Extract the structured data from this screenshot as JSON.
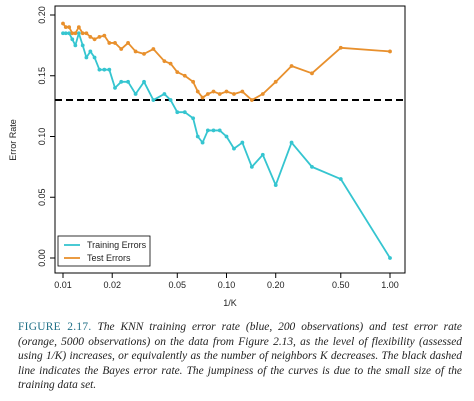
{
  "chart_data": {
    "type": "line",
    "xscale": "log",
    "xlabel": "1/K",
    "ylabel": "Error Rate",
    "xlim": [
      0.01,
      1.0
    ],
    "ylim": [
      0.0,
      0.2
    ],
    "x_ticks": [
      "0.01",
      "0.02",
      "0.05",
      "0.10",
      "0.20",
      "0.50",
      "1.00"
    ],
    "x_tick_values": [
      0.01,
      0.02,
      0.05,
      0.1,
      0.2,
      0.5,
      1.0
    ],
    "y_ticks": [
      "0.00",
      "0.05",
      "0.10",
      "0.15",
      "0.20"
    ],
    "y_tick_values": [
      0.0,
      0.05,
      0.1,
      0.15,
      0.2
    ],
    "grid": false,
    "legend_position": "bottom-left",
    "reference_line": {
      "y": 0.13,
      "style": "dashed",
      "color": "#000000"
    },
    "series": [
      {
        "name": "Training Errors",
        "color": "#35c5d0",
        "points": [
          [
            0.01,
            0.185
          ],
          [
            0.0104,
            0.185
          ],
          [
            0.0109,
            0.185
          ],
          [
            0.0114,
            0.18
          ],
          [
            0.0119,
            0.175
          ],
          [
            0.0125,
            0.185
          ],
          [
            0.0132,
            0.175
          ],
          [
            0.0139,
            0.165
          ],
          [
            0.0147,
            0.17
          ],
          [
            0.0156,
            0.165
          ],
          [
            0.0167,
            0.155
          ],
          [
            0.0179,
            0.155
          ],
          [
            0.0192,
            0.155
          ],
          [
            0.0208,
            0.14
          ],
          [
            0.0227,
            0.145
          ],
          [
            0.025,
            0.145
          ],
          [
            0.0278,
            0.135
          ],
          [
            0.0313,
            0.145
          ],
          [
            0.0357,
            0.13
          ],
          [
            0.0417,
            0.135
          ],
          [
            0.0455,
            0.13
          ],
          [
            0.05,
            0.12
          ],
          [
            0.0556,
            0.12
          ],
          [
            0.0625,
            0.115
          ],
          [
            0.0667,
            0.1
          ],
          [
            0.0714,
            0.095
          ],
          [
            0.0769,
            0.105
          ],
          [
            0.0833,
            0.105
          ],
          [
            0.0909,
            0.105
          ],
          [
            0.1,
            0.1
          ],
          [
            0.1111,
            0.09
          ],
          [
            0.125,
            0.095
          ],
          [
            0.1429,
            0.075
          ],
          [
            0.1667,
            0.085
          ],
          [
            0.2,
            0.06
          ],
          [
            0.25,
            0.095
          ],
          [
            0.3333,
            0.075
          ],
          [
            0.5,
            0.065
          ],
          [
            1.0,
            0.0
          ]
        ]
      },
      {
        "name": "Test Errors",
        "color": "#e8902d",
        "points": [
          [
            0.01,
            0.193
          ],
          [
            0.0104,
            0.19
          ],
          [
            0.0109,
            0.19
          ],
          [
            0.0114,
            0.185
          ],
          [
            0.0119,
            0.185
          ],
          [
            0.0125,
            0.19
          ],
          [
            0.0132,
            0.185
          ],
          [
            0.0139,
            0.185
          ],
          [
            0.0147,
            0.182
          ],
          [
            0.0156,
            0.18
          ],
          [
            0.0167,
            0.182
          ],
          [
            0.0179,
            0.183
          ],
          [
            0.0192,
            0.177
          ],
          [
            0.0208,
            0.177
          ],
          [
            0.0227,
            0.172
          ],
          [
            0.025,
            0.177
          ],
          [
            0.0278,
            0.17
          ],
          [
            0.0313,
            0.168
          ],
          [
            0.0357,
            0.172
          ],
          [
            0.0417,
            0.162
          ],
          [
            0.0455,
            0.16
          ],
          [
            0.05,
            0.153
          ],
          [
            0.0556,
            0.15
          ],
          [
            0.0625,
            0.145
          ],
          [
            0.0667,
            0.137
          ],
          [
            0.0714,
            0.132
          ],
          [
            0.0769,
            0.135
          ],
          [
            0.0833,
            0.137
          ],
          [
            0.0909,
            0.135
          ],
          [
            0.1,
            0.137
          ],
          [
            0.1111,
            0.135
          ],
          [
            0.125,
            0.137
          ],
          [
            0.1429,
            0.13
          ],
          [
            0.1667,
            0.135
          ],
          [
            0.2,
            0.145
          ],
          [
            0.25,
            0.158
          ],
          [
            0.3333,
            0.152
          ],
          [
            0.5,
            0.173
          ],
          [
            1.0,
            0.17
          ]
        ]
      }
    ]
  },
  "caption": {
    "label": "FIGURE 2.17.",
    "text": "The KNN training error rate (blue, 200 observations) and test error rate (orange, 5000 observations) on the data from Figure 2.13, as the level of flexibility (assessed using 1/K) increases, or equivalently as the number of neighbors K decreases. The black dashed line indicates the Bayes error rate. The jumpiness of the curves is due to the small size of the training data set."
  }
}
